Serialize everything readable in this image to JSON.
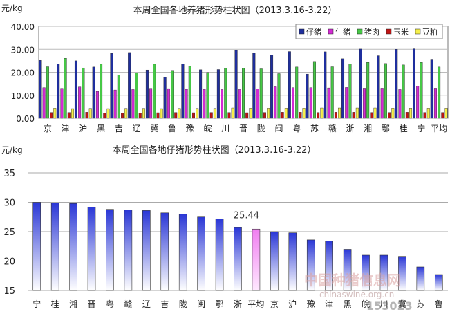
{
  "chart_data": [
    {
      "type": "bar",
      "title": "本周全国各地养猪形势柱状图（2013.3.16-3.22）",
      "ylabel": "元/kg",
      "ylim": [
        0,
        40
      ],
      "yticks": [
        "0.00",
        "10.00",
        "20.00",
        "30.00",
        "40.00"
      ],
      "legend_position": "top-right",
      "categories": [
        "京",
        "津",
        "沪",
        "黑",
        "吉",
        "辽",
        "冀",
        "鲁",
        "豫",
        "皖",
        "川",
        "晋",
        "陇",
        "闽",
        "粤",
        "苏",
        "赣",
        "浙",
        "湘",
        "鄂",
        "桂",
        "宁",
        "平均"
      ],
      "series": [
        {
          "name": "仔猪",
          "color": "#1f2f9e",
          "values": [
            25.2,
            23.6,
            25.0,
            22.3,
            28.2,
            28.6,
            21.0,
            17.9,
            23.7,
            21.1,
            21.2,
            29.5,
            28.3,
            27.6,
            29.0,
            19.2,
            28.9,
            25.9,
            30.1,
            27.2,
            30.0,
            30.2,
            25.4
          ]
        },
        {
          "name": "生猪",
          "color": "#d42ad4",
          "values": [
            13.3,
            13.0,
            13.6,
            11.7,
            12.3,
            12.5,
            13.0,
            12.9,
            12.6,
            12.6,
            12.5,
            12.5,
            12.8,
            13.7,
            13.3,
            13.3,
            13.2,
            13.4,
            13.1,
            13.1,
            12.5,
            13.9,
            13.1
          ]
        },
        {
          "name": "猪肉",
          "color": "#46c846",
          "values": [
            22.4,
            26.1,
            21.9,
            23.5,
            18.8,
            19.8,
            23.5,
            20.8,
            22.6,
            19.9,
            21.7,
            21.8,
            21.5,
            19.4,
            22.3,
            24.7,
            22.4,
            23.6,
            24.3,
            23.8,
            23.2,
            24.3,
            22.3
          ]
        },
        {
          "name": "玉米",
          "color": "#c01414",
          "values": [
            2.5,
            2.5,
            2.6,
            2.2,
            2.3,
            2.3,
            2.4,
            2.5,
            2.4,
            2.5,
            2.5,
            2.4,
            2.5,
            2.6,
            2.6,
            2.5,
            2.6,
            2.6,
            2.5,
            2.5,
            2.6,
            2.5,
            2.5
          ]
        },
        {
          "name": "豆粕",
          "color": "#f5f04a",
          "values": [
            4.4,
            4.2,
            4.3,
            4.2,
            4.3,
            4.3,
            4.2,
            4.3,
            4.3,
            4.3,
            4.5,
            4.4,
            4.4,
            4.4,
            4.4,
            4.5,
            4.5,
            4.5,
            4.5,
            4.4,
            4.4,
            4.4,
            4.4
          ]
        }
      ]
    },
    {
      "type": "bar",
      "title": "本周全国各地仔猪形势柱状图（2013.3.16-3.22）",
      "ylabel": "元/kg",
      "ylim": [
        15,
        35
      ],
      "yticks": [
        "15",
        "20",
        "25",
        "30",
        "35"
      ],
      "categories": [
        "宁",
        "桂",
        "湘",
        "晋",
        "粤",
        "赣",
        "辽",
        "吉",
        "陇",
        "闽",
        "鄂",
        "浙",
        "平均",
        "京",
        "沪",
        "豫",
        "津",
        "黑",
        "皖",
        "川",
        "冀",
        "苏",
        "鲁"
      ],
      "values": [
        30.0,
        29.9,
        29.8,
        29.2,
        28.8,
        28.7,
        28.6,
        28.2,
        28.0,
        27.5,
        27.2,
        25.7,
        25.44,
        25.0,
        24.8,
        23.6,
        23.4,
        22.0,
        21.0,
        21.0,
        20.8,
        19.0,
        17.7
      ],
      "highlight_index": 12,
      "highlight_label": "25.44",
      "bar_color_top": "#2a37d6",
      "bar_color_bottom": "#ffffff",
      "highlight_color": "#f07ef0"
    }
  ],
  "watermark": {
    "brand_cn": "中国种猪信息网",
    "site": "chinaswine.org.cn",
    "numbers": "153023"
  }
}
